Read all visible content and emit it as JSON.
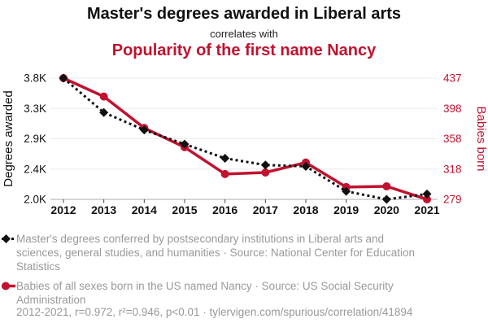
{
  "header": {
    "title_top": "Master's degrees awarded in Liberal arts",
    "connector": "correlates with",
    "title_bottom": "Popularity of the first name Nancy"
  },
  "colors": {
    "red": "#C1122F",
    "black": "#111111",
    "gray_text": "#999999",
    "gridline": "#ECECEC",
    "axis_line": "#ADADAD",
    "tick_mark": "#444444"
  },
  "chart_data": {
    "type": "line",
    "x": [
      2012,
      2013,
      2014,
      2015,
      2016,
      2017,
      2018,
      2019,
      2020,
      2021
    ],
    "x_tick_labels": [
      "2012",
      "2013",
      "2014",
      "2015",
      "2016",
      "2017",
      "2018",
      "2019",
      "2020",
      "2021"
    ],
    "left_axis": {
      "label": "Degrees awarded",
      "tick_labels": [
        "3.8K",
        "3.3K",
        "2.9K",
        "2.4K",
        "2.0K"
      ],
      "min": 2000,
      "max": 3800
    },
    "right_axis": {
      "label": "Babies born",
      "tick_labels": [
        "437",
        "398",
        "358",
        "318",
        "279"
      ],
      "min": 279,
      "max": 437
    },
    "series": [
      {
        "name": "Master's degrees awarded in Liberal arts",
        "axis": "left",
        "line_style": "dashed",
        "marker": "diamond",
        "color": "#111111",
        "values": [
          3800,
          3290,
          3030,
          2820,
          2610,
          2510,
          2490,
          2120,
          2000,
          2080
        ]
      },
      {
        "name": "Babies born named Nancy",
        "axis": "right",
        "line_style": "solid",
        "marker": "circle",
        "color": "#C1122F",
        "values": [
          437,
          413,
          372,
          347,
          312,
          314,
          327,
          295,
          296,
          279
        ]
      }
    ],
    "grid": "horizontal",
    "legend_position": "below"
  },
  "legend": {
    "items": [
      {
        "text": "Master's degrees conferred by postsecondary institutions in Liberal arts and sciences, general studies, and humanities · Source: National Center for Education Statistics"
      },
      {
        "text": "Babies of all sexes born in the US named Nancy · Source: US Social Security Administration"
      }
    ]
  },
  "footer": {
    "stats": "2012-2021, r=0.972, r²=0.946, p<0.01 · tylervigen.com/spurious/correlation/41894"
  }
}
